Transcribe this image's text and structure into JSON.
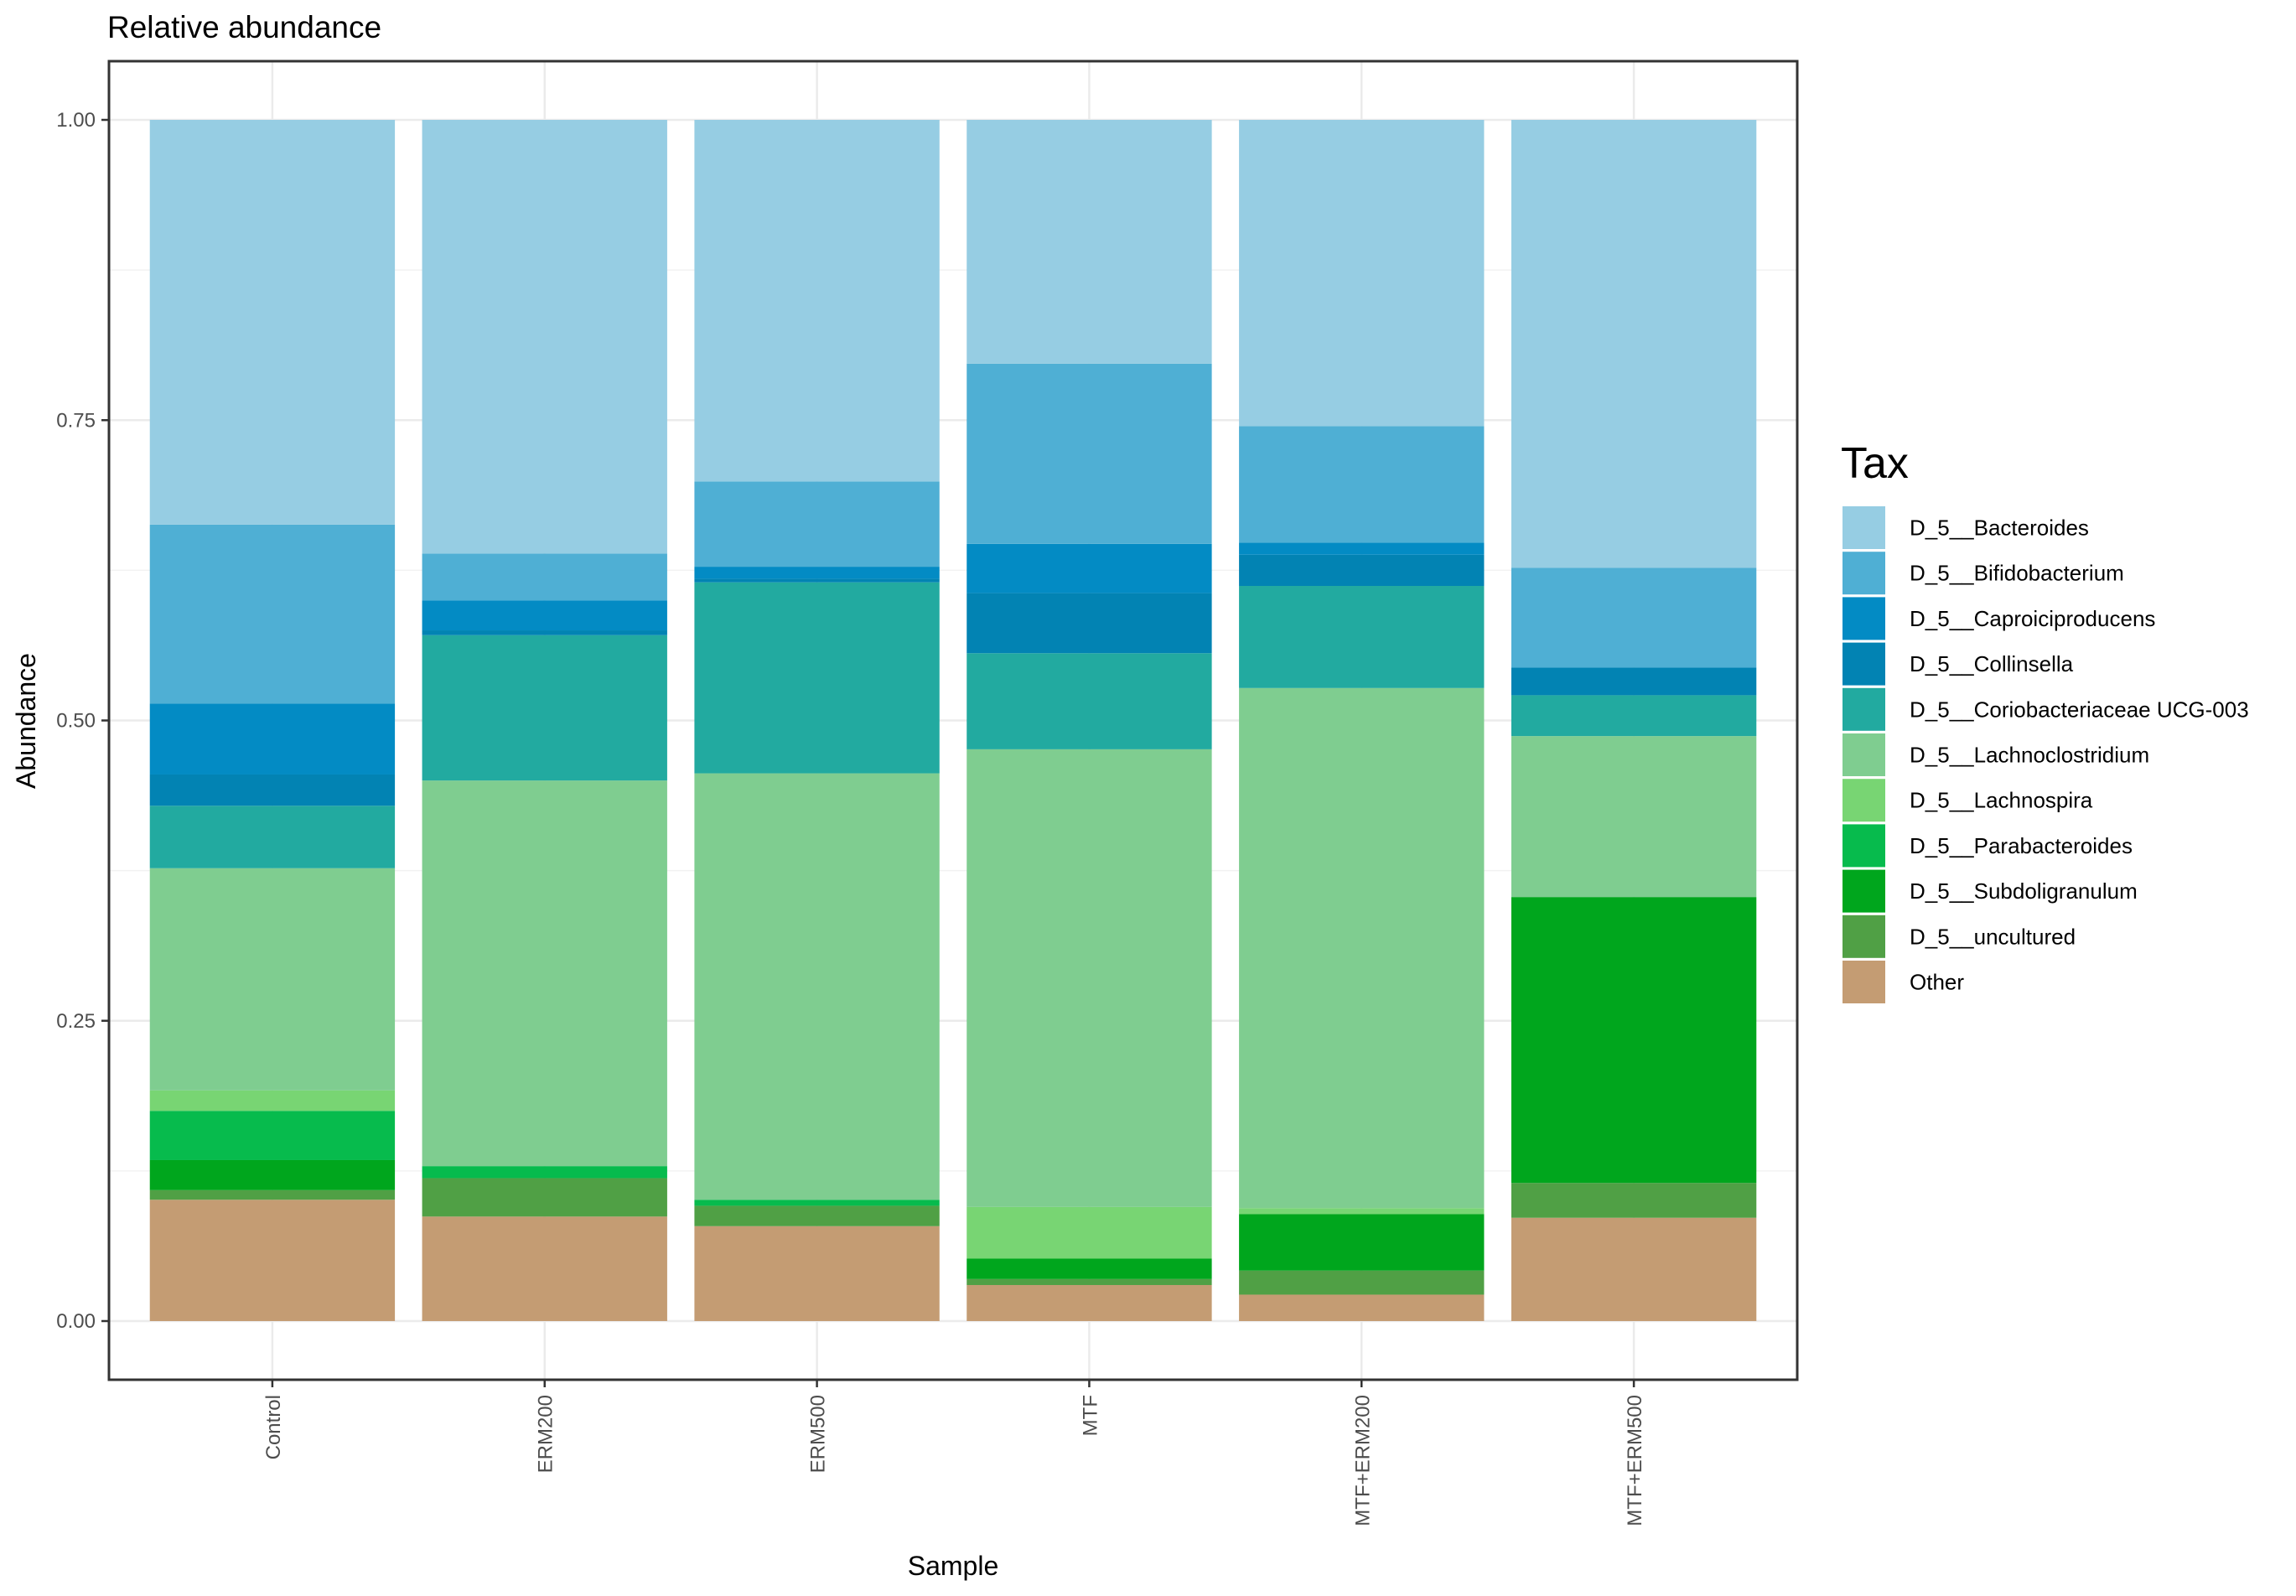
{
  "chart_data": {
    "type": "bar",
    "stacked": true,
    "title": "Relative abundance",
    "xlabel": "Sample",
    "ylabel": "Abundance",
    "ylim": [
      0,
      1
    ],
    "yticks": [
      0,
      0.25,
      0.5,
      0.75,
      1
    ],
    "ytick_labels": [
      "0.00",
      "0.25",
      "0.50",
      "0.75",
      "1.00"
    ],
    "categories": [
      "Control",
      "ERM200",
      "ERM500",
      "MTF",
      "MTF+ERM200",
      "MTF+ERM500"
    ],
    "legend_title": "Tax",
    "legend_position": "right",
    "series": [
      {
        "name": "D_5__Bacteroides",
        "color": "#96cde3",
        "values": [
          0.337,
          0.361,
          0.301,
          0.203,
          0.255,
          0.373
        ]
      },
      {
        "name": "D_5__Bifidobacterium",
        "color": "#4fafd4",
        "values": [
          0.149,
          0.039,
          0.071,
          0.15,
          0.097,
          0.083
        ]
      },
      {
        "name": "D_5__Caproiciproducens",
        "color": "#038bc4",
        "values": [
          0.059,
          0.025,
          0.01,
          0.041,
          0.01,
          0.0
        ]
      },
      {
        "name": "D_5__Collinsella",
        "color": "#0283b3",
        "values": [
          0.026,
          0.004,
          0.003,
          0.05,
          0.026,
          0.023
        ]
      },
      {
        "name": "D_5__Coriobacteriaceae UCG-003",
        "color": "#22aaa0",
        "values": [
          0.052,
          0.121,
          0.159,
          0.08,
          0.085,
          0.034
        ]
      },
      {
        "name": "D_5__Lachnoclostridium",
        "color": "#7fcd90",
        "values": [
          0.185,
          0.321,
          0.355,
          0.381,
          0.433,
          0.134
        ]
      },
      {
        "name": "D_5__Lachnospira",
        "color": "#78d573",
        "values": [
          0.017,
          0.0,
          0.0,
          0.043,
          0.005,
          0.0
        ]
      },
      {
        "name": "D_5__Parabacteroides",
        "color": "#07bb4d",
        "values": [
          0.041,
          0.01,
          0.005,
          0.0,
          0.0,
          0.0
        ]
      },
      {
        "name": "D_5__Subdoligranulum",
        "color": "#00a61d",
        "values": [
          0.025,
          0.0,
          0.0,
          0.017,
          0.047,
          0.238
        ]
      },
      {
        "name": "D_5__uncultured",
        "color": "#50a045",
        "values": [
          0.008,
          0.032,
          0.017,
          0.005,
          0.02,
          0.029
        ]
      },
      {
        "name": "Other",
        "color": "#c49c73",
        "values": [
          0.101,
          0.087,
          0.079,
          0.03,
          0.022,
          0.086
        ]
      }
    ]
  }
}
